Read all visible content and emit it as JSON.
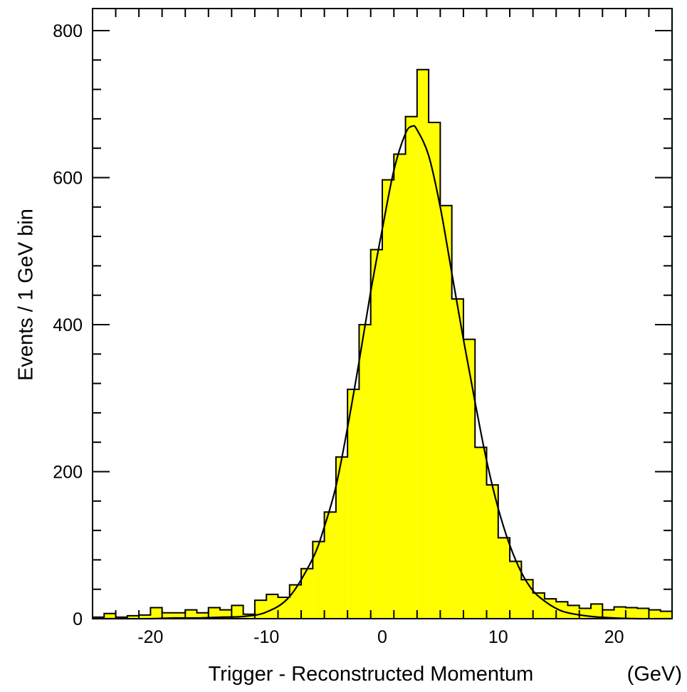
{
  "chart_data": {
    "type": "bar",
    "subtype": "histogram",
    "title": "",
    "xlabel": "Trigger - Reconstructed Momentum",
    "xunit": "(GeV)",
    "ylabel": "Events / 1 GeV bin",
    "xlim": [
      -25,
      25
    ],
    "ylim": [
      0,
      830
    ],
    "xticks": [
      -20,
      -10,
      0,
      10,
      20
    ],
    "yticks": [
      0,
      200,
      400,
      600,
      800
    ],
    "grid": false,
    "legend": "none",
    "bins": {
      "start": -25,
      "width": 1,
      "values": [
        2,
        7,
        2,
        4,
        5,
        15,
        8,
        8,
        12,
        8,
        15,
        12,
        18,
        6,
        25,
        33,
        29,
        46,
        68,
        105,
        145,
        220,
        312,
        400,
        502,
        597,
        632,
        683,
        747,
        675,
        562,
        435,
        380,
        233,
        182,
        110,
        78,
        53,
        35,
        27,
        23,
        18,
        14,
        20,
        12,
        16,
        15,
        14,
        12,
        10
      ]
    },
    "fit_curve": {
      "x": [
        -25,
        -22,
        -20,
        -18,
        -16,
        -14,
        -12,
        -10,
        -8,
        -6,
        -5,
        -4,
        -3,
        -2,
        -1,
        0,
        1,
        2,
        2.6,
        3,
        4,
        5,
        6,
        7,
        8,
        9,
        10,
        11,
        12,
        13,
        14,
        15,
        16,
        18,
        20,
        22,
        25
      ],
      "y": [
        0,
        0,
        0,
        1,
        1,
        2,
        3,
        9,
        30,
        82,
        125,
        180,
        260,
        350,
        445,
        530,
        610,
        660,
        670,
        665,
        630,
        560,
        470,
        380,
        295,
        215,
        150,
        100,
        63,
        38,
        24,
        14,
        8,
        3,
        1,
        0,
        0
      ]
    },
    "colors": {
      "fill": "#ffff00",
      "stroke": "#000000",
      "background": "#ffffff"
    }
  }
}
